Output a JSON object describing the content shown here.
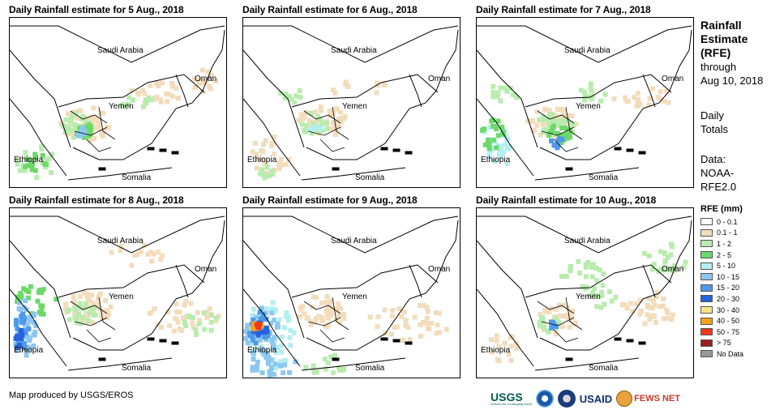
{
  "panels": [
    {
      "title": "Daily Rainfall estimate for 5 Aug., 2018",
      "labels": {
        "saudi": "Saudi Arabia",
        "oman": "Oman",
        "yemen": "Yemen",
        "ethiopia": "Ethiopia",
        "somalia": "Somalia"
      },
      "intensity": "moderate"
    },
    {
      "title": "Daily Rainfall estimate for 6 Aug., 2018",
      "labels": {
        "saudi": "Saudi Arabia",
        "oman": "Oman",
        "yemen": "Yemen",
        "ethiopia": "Ethiopia",
        "somalia": "Somalia"
      },
      "intensity": "light"
    },
    {
      "title": "Daily Rainfall estimate for 7 Aug., 2018",
      "labels": {
        "saudi": "Saudi Arabia",
        "oman": "Oman",
        "yemen": "Yemen",
        "ethiopia": "Ethiopia",
        "somalia": "Somalia"
      },
      "intensity": "moderate"
    },
    {
      "title": "Daily Rainfall estimate for 8 Aug., 2018",
      "labels": {
        "saudi": "Saudi Arabia",
        "oman": "Oman",
        "yemen": "Yemen",
        "ethiopia": "Ethiopia",
        "somalia": "Somalia"
      },
      "intensity": "heavy-west"
    },
    {
      "title": "Daily Rainfall estimate for 9 Aug., 2018",
      "labels": {
        "saudi": "Saudi Arabia",
        "oman": "Oman",
        "yemen": "Yemen",
        "ethiopia": "Ethiopia",
        "somalia": "Somalia"
      },
      "intensity": "very-heavy-west"
    },
    {
      "title": "Daily Rainfall estimate for 10 Aug., 2018",
      "labels": {
        "saudi": "Saudi Arabia",
        "oman": "Oman",
        "yemen": "Yemen",
        "ethiopia": "Ethiopia",
        "somalia": "Somalia"
      },
      "intensity": "light"
    }
  ],
  "sidebar": {
    "heading_lines": [
      "Rainfall",
      "Estimate",
      "(RFE)"
    ],
    "through_lines": [
      "through",
      "Aug 10, 2018"
    ],
    "daily_lines": [
      "Daily",
      "Totals"
    ],
    "data_lines": [
      "Data:",
      "NOAA-",
      "RFE2.0"
    ]
  },
  "legend": {
    "title": "RFE (mm)",
    "items": [
      {
        "label": "0 - 0.1",
        "color": "#ffffff"
      },
      {
        "label": "0.1 - 1",
        "color": "#f2dcbc"
      },
      {
        "label": "1 - 2",
        "color": "#b8ecae"
      },
      {
        "label": "2 - 5",
        "color": "#6dd86a"
      },
      {
        "label": "5 - 10",
        "color": "#b3eef0"
      },
      {
        "label": "10 - 15",
        "color": "#8dc7f0"
      },
      {
        "label": "15 - 20",
        "color": "#4f98ec"
      },
      {
        "label": "20 - 30",
        "color": "#2762dc"
      },
      {
        "label": "30 - 40",
        "color": "#fbe38a"
      },
      {
        "label": "40 - 50",
        "color": "#f5a21c"
      },
      {
        "label": "50 - 75",
        "color": "#ee3a1a"
      },
      {
        "label": "> 75",
        "color": "#9b1f1f"
      },
      {
        "label": "No Data",
        "color": "#999999"
      }
    ]
  },
  "credit": "Map produced by USGS/EROS",
  "logos": {
    "usgs": "USGS",
    "usgs_tagline": "science for a changing world",
    "usaid": "USAID",
    "fews": "FEWS NET"
  }
}
